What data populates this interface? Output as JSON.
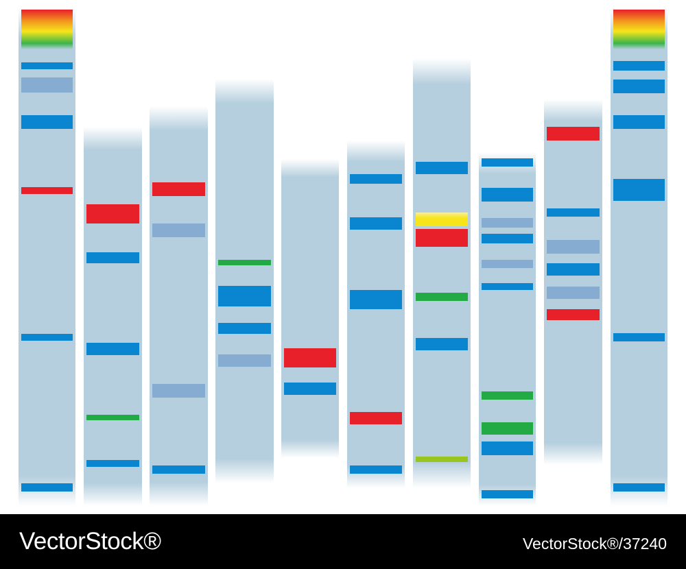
{
  "footer": {
    "brand": "VectorStock®",
    "id_text": "VectorStock®/37240"
  }
}
